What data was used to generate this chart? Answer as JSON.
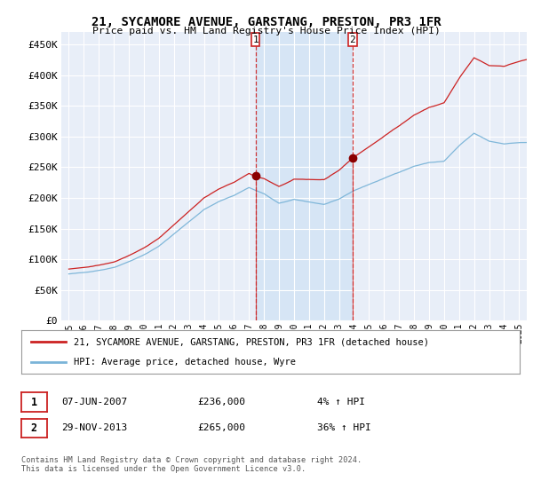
{
  "title_line1": "21, SYCAMORE AVENUE, GARSTANG, PRESTON, PR3 1FR",
  "title_line2": "Price paid vs. HM Land Registry's House Price Index (HPI)",
  "ylabel_ticks": [
    "£0",
    "£50K",
    "£100K",
    "£150K",
    "£200K",
    "£250K",
    "£300K",
    "£350K",
    "£400K",
    "£450K"
  ],
  "ylabel_values": [
    0,
    50000,
    100000,
    150000,
    200000,
    250000,
    300000,
    350000,
    400000,
    450000
  ],
  "ylim": [
    0,
    470000
  ],
  "xlim_start": 1994.5,
  "xlim_end": 2025.5,
  "sale1_x": 2007.44,
  "sale1_y": 236000,
  "sale1_label": "1",
  "sale2_x": 2013.91,
  "sale2_y": 265000,
  "sale2_label": "2",
  "vline1_x": 2007.44,
  "vline2_x": 2013.91,
  "background_color": "#ffffff",
  "plot_bg_color": "#dde8f5",
  "plot_bg_color_outside": "#e8eef8",
  "shade_color": "#c8d8ee",
  "grid_color": "#ffffff",
  "hpi_line_color": "#7ab4d8",
  "price_line_color": "#cc2222",
  "legend_entry1": "21, SYCAMORE AVENUE, GARSTANG, PRESTON, PR3 1FR (detached house)",
  "legend_entry2": "HPI: Average price, detached house, Wyre",
  "footnote": "Contains HM Land Registry data © Crown copyright and database right 2024.\nThis data is licensed under the Open Government Licence v3.0.",
  "xticks": [
    1995,
    1996,
    1997,
    1998,
    1999,
    2000,
    2001,
    2002,
    2003,
    2004,
    2005,
    2006,
    2007,
    2008,
    2009,
    2010,
    2011,
    2012,
    2013,
    2014,
    2015,
    2016,
    2017,
    2018,
    2019,
    2020,
    2021,
    2022,
    2023,
    2024,
    2025
  ]
}
